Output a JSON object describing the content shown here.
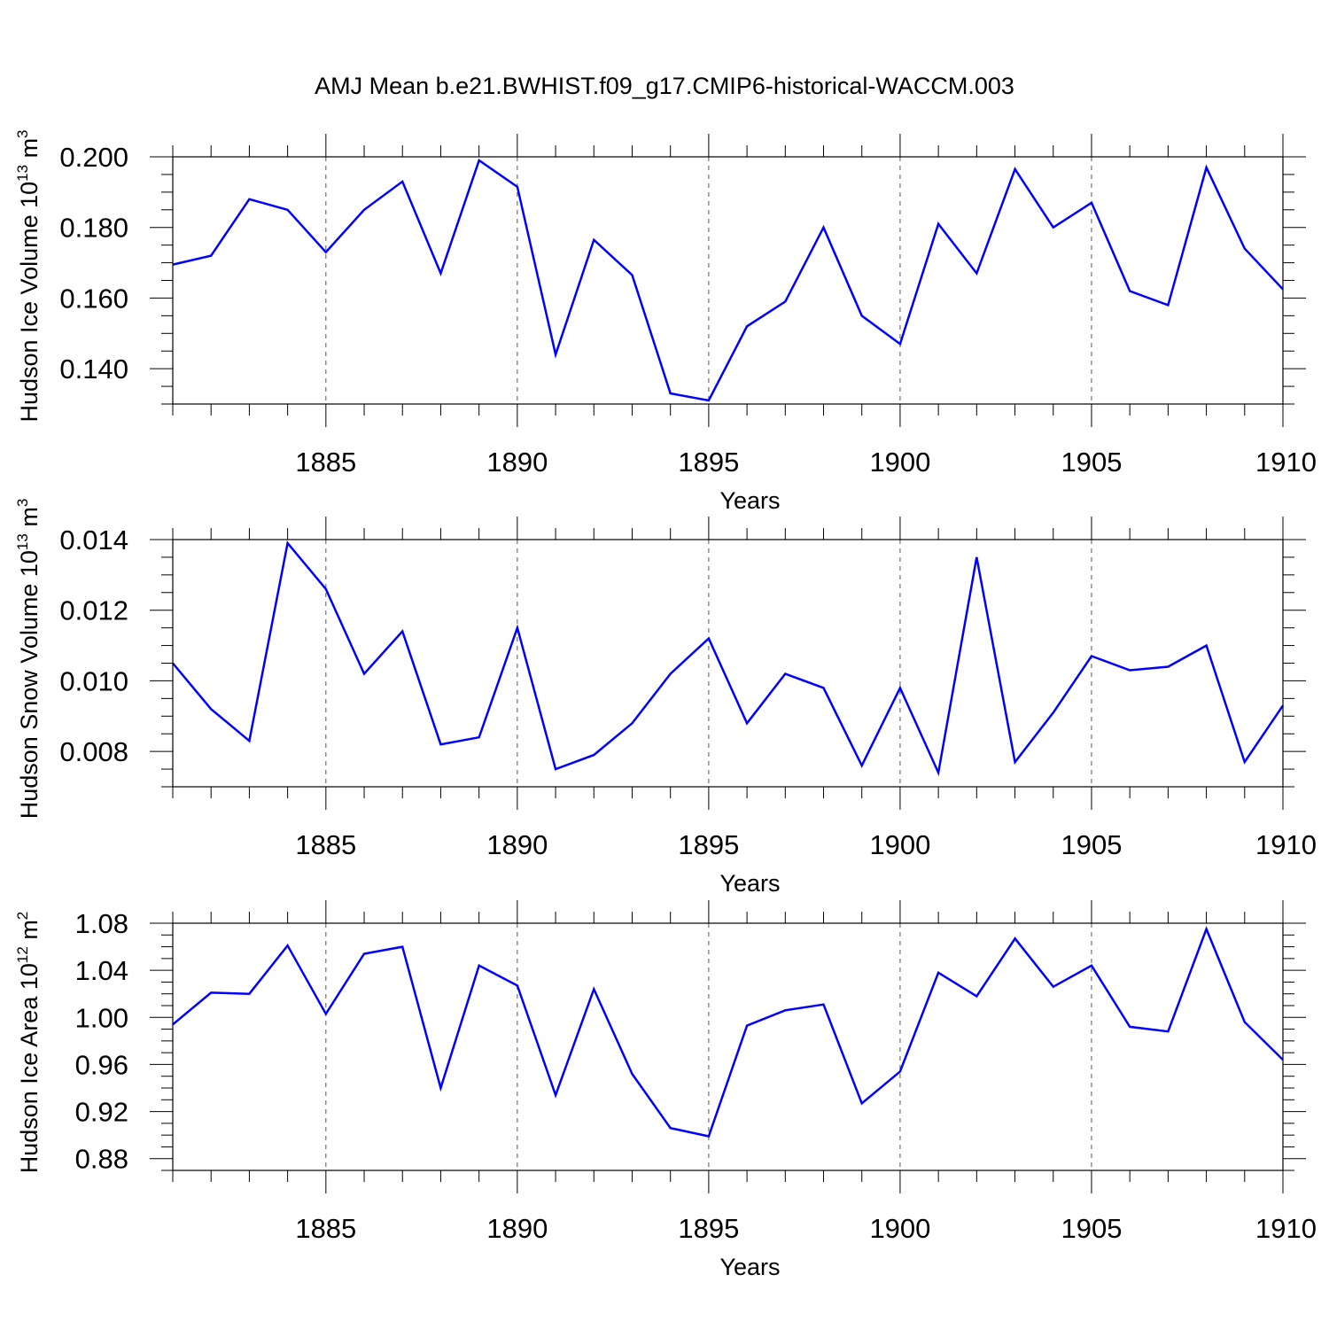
{
  "title": "AMJ Mean b.e21.BWHIST.f09_g17.CMIP6-historical-WACCM.003",
  "chart_data": [
    {
      "type": "line",
      "xlabel": "Years",
      "ylabel": {
        "main": "Hudson Ice Volume 10",
        "exp": "13",
        "unit": " m",
        "unit_exp": "3"
      },
      "x": [
        1881,
        1882,
        1883,
        1884,
        1885,
        1886,
        1887,
        1888,
        1889,
        1890,
        1891,
        1892,
        1893,
        1894,
        1895,
        1896,
        1897,
        1898,
        1899,
        1900,
        1901,
        1902,
        1903,
        1904,
        1905,
        1906,
        1907,
        1908,
        1909,
        1910
      ],
      "values": [
        0.1695,
        0.172,
        0.188,
        0.185,
        0.173,
        0.185,
        0.193,
        0.167,
        0.199,
        0.1915,
        0.144,
        0.1765,
        0.1665,
        0.133,
        0.131,
        0.152,
        0.159,
        0.18,
        0.155,
        0.147,
        0.181,
        0.167,
        0.1965,
        0.18,
        0.187,
        0.162,
        0.158,
        0.197,
        0.174,
        0.1625
      ],
      "xlim": [
        1881,
        1910
      ],
      "ylim": [
        0.13,
        0.2
      ],
      "yticks": [
        "0.140",
        "0.160",
        "0.180",
        "0.200"
      ],
      "ytick_values": [
        0.14,
        0.16,
        0.18,
        0.2
      ],
      "yminor_step": 0.005,
      "xticks": [
        "1885",
        "1890",
        "1895",
        "1900",
        "1905",
        "1910"
      ],
      "xtick_values": [
        1885,
        1890,
        1895,
        1900,
        1905,
        1910
      ],
      "grid": "dashed vertical lines at major x ticks",
      "color": "#0000ff"
    },
    {
      "type": "line",
      "xlabel": "Years",
      "ylabel": {
        "main": "Hudson Snow Volume 10",
        "exp": "13",
        "unit": " m",
        "unit_exp": "3"
      },
      "x": [
        1881,
        1882,
        1883,
        1884,
        1885,
        1886,
        1887,
        1888,
        1889,
        1890,
        1891,
        1892,
        1893,
        1894,
        1895,
        1896,
        1897,
        1898,
        1899,
        1900,
        1901,
        1902,
        1903,
        1904,
        1905,
        1906,
        1907,
        1908,
        1909,
        1910
      ],
      "values": [
        0.0105,
        0.0092,
        0.0083,
        0.0139,
        0.0126,
        0.0102,
        0.0114,
        0.0082,
        0.0084,
        0.0115,
        0.0075,
        0.0079,
        0.0088,
        0.0102,
        0.0112,
        0.0088,
        0.0102,
        0.0098,
        0.0076,
        0.0098,
        0.0074,
        0.0135,
        0.0077,
        0.0091,
        0.0107,
        0.0103,
        0.0104,
        0.011,
        0.0077,
        0.0093
      ],
      "xlim": [
        1881,
        1910
      ],
      "ylim": [
        0.007,
        0.014
      ],
      "yticks": [
        "0.008",
        "0.010",
        "0.012",
        "0.014"
      ],
      "ytick_values": [
        0.008,
        0.01,
        0.012,
        0.014
      ],
      "yminor_step": 0.0005,
      "xticks": [
        "1885",
        "1890",
        "1895",
        "1900",
        "1905",
        "1910"
      ],
      "xtick_values": [
        1885,
        1890,
        1895,
        1900,
        1905,
        1910
      ],
      "grid": "dashed vertical lines at major x ticks",
      "color": "#0000ff"
    },
    {
      "type": "line",
      "xlabel": "Years",
      "ylabel": {
        "main": "Hudson Ice Area 10",
        "exp": "12",
        "unit": " m",
        "unit_exp": "2"
      },
      "x": [
        1881,
        1882,
        1883,
        1884,
        1885,
        1886,
        1887,
        1888,
        1889,
        1890,
        1891,
        1892,
        1893,
        1894,
        1895,
        1896,
        1897,
        1898,
        1899,
        1900,
        1901,
        1902,
        1903,
        1904,
        1905,
        1906,
        1907,
        1908,
        1909,
        1910
      ],
      "values": [
        0.994,
        1.021,
        1.02,
        1.061,
        1.003,
        1.054,
        1.06,
        0.94,
        1.044,
        1.027,
        0.934,
        1.024,
        0.952,
        0.906,
        0.899,
        0.993,
        1.006,
        1.011,
        0.927,
        0.954,
        1.038,
        1.018,
        1.067,
        1.026,
        1.044,
        0.992,
        0.988,
        1.075,
        0.996,
        0.964
      ],
      "xlim": [
        1881,
        1910
      ],
      "ylim": [
        0.87,
        1.08
      ],
      "yticks": [
        "0.88",
        "0.92",
        "0.96",
        "1.00",
        "1.04",
        "1.08"
      ],
      "ytick_values": [
        0.88,
        0.92,
        0.96,
        1.0,
        1.04,
        1.08
      ],
      "yminor_step": 0.01,
      "xticks": [
        "1885",
        "1890",
        "1895",
        "1900",
        "1905",
        "1910"
      ],
      "xtick_values": [
        1885,
        1890,
        1895,
        1900,
        1905,
        1910
      ],
      "grid": "dashed vertical lines at major x ticks",
      "color": "#0000ff"
    }
  ]
}
